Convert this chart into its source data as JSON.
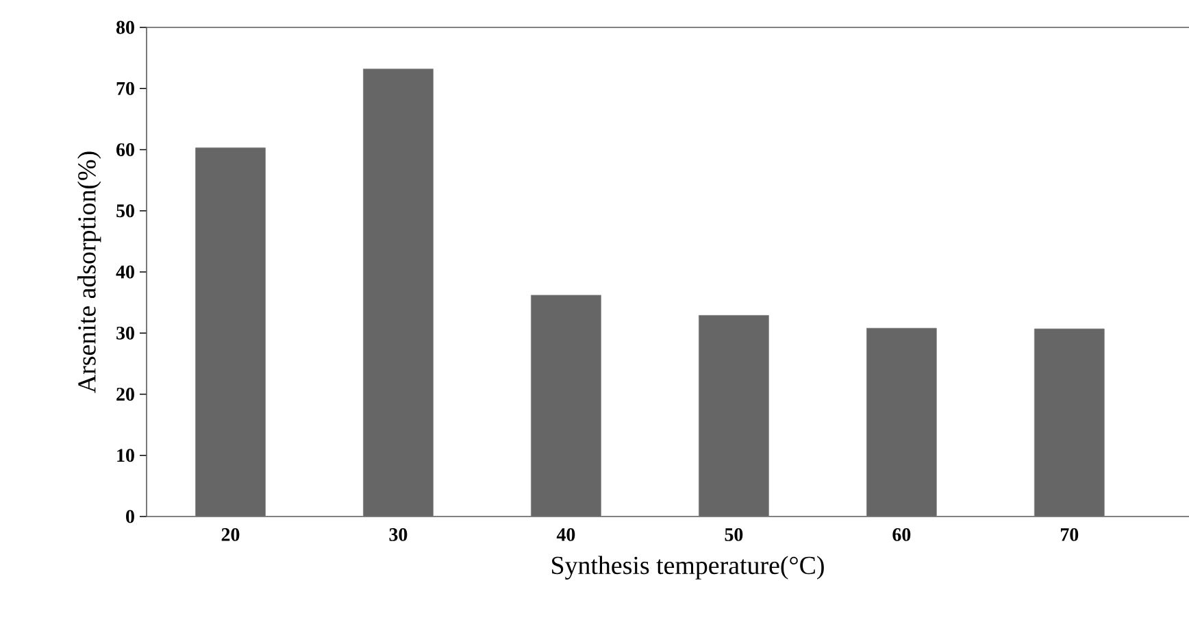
{
  "chart_data": {
    "type": "bar",
    "xlabel": "Synthesis temperature(°C)",
    "ylabel": "Arsenite adsorption(%)",
    "categories": [
      "20",
      "30",
      "40",
      "50",
      "60",
      "70"
    ],
    "values": [
      60.3,
      73.2,
      36.2,
      32.9,
      30.8,
      30.7
    ],
    "color": "#666666",
    "ylim": [
      0,
      80
    ],
    "yticks": [
      0,
      10,
      20,
      30,
      40,
      50,
      60,
      70,
      80
    ]
  }
}
